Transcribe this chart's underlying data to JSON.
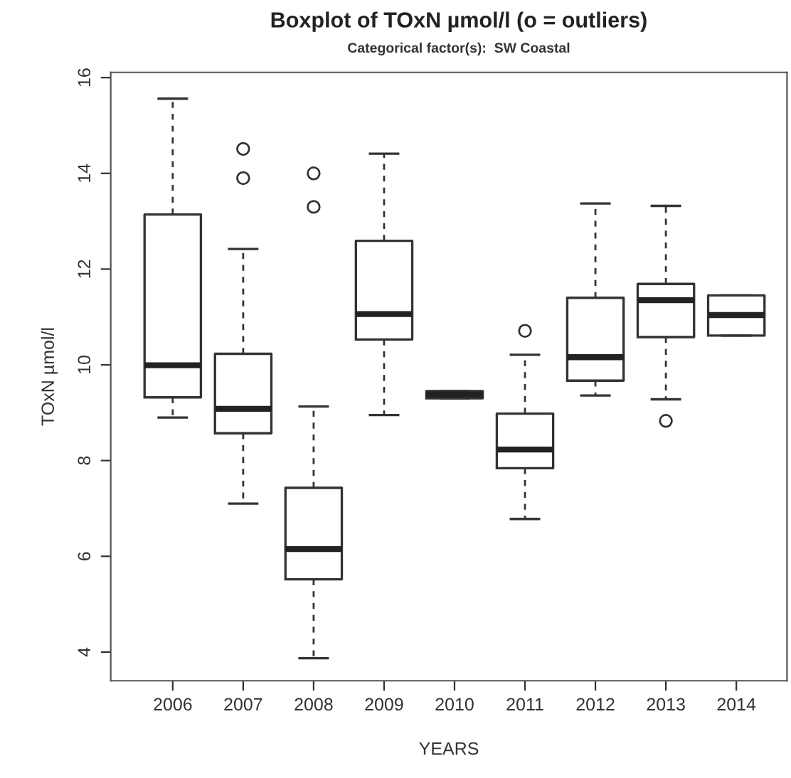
{
  "chart_data": {
    "type": "box",
    "title": "Boxplot of TOxN µmol/l (o = outliers)",
    "subtitle": "Categorical factor(s):  SW Coastal",
    "xlabel": "YEARS",
    "ylabel": "TOxN µmol/l",
    "categories": [
      "2006",
      "2007",
      "2008",
      "2009",
      "2010",
      "2011",
      "2012",
      "2013",
      "2014"
    ],
    "boxes": [
      {
        "low": 8.9,
        "q1": 9.32,
        "median": 9.99,
        "q3": 13.14,
        "high": 15.56
      },
      {
        "low": 7.1,
        "q1": 8.57,
        "median": 9.08,
        "q3": 10.23,
        "high": 12.42,
        "outliers": [
          14.51,
          13.9
        ]
      },
      {
        "low": 3.87,
        "q1": 5.52,
        "median": 6.15,
        "q3": 7.43,
        "high": 9.13,
        "outliers": [
          14.0,
          13.3
        ]
      },
      {
        "low": 8.95,
        "q1": 10.53,
        "median": 11.06,
        "q3": 12.59,
        "high": 14.41
      },
      {
        "low": 9.3,
        "q1": 9.3,
        "median": 9.38,
        "q3": 9.45,
        "high": 9.45
      },
      {
        "low": 6.78,
        "q1": 7.84,
        "median": 8.23,
        "q3": 8.98,
        "high": 10.21,
        "outliers": [
          10.71
        ]
      },
      {
        "low": 9.36,
        "q1": 9.67,
        "median": 10.16,
        "q3": 11.4,
        "high": 13.37
      },
      {
        "low": 9.28,
        "q1": 10.58,
        "median": 11.35,
        "q3": 11.69,
        "high": 13.32,
        "outliers": [
          8.83
        ]
      },
      {
        "low": 10.61,
        "q1": 10.61,
        "median": 11.04,
        "q3": 11.45,
        "high": 11.45
      }
    ],
    "ylim": [
      3.4,
      16.11
    ],
    "yticks": [
      4,
      6,
      8,
      10,
      12,
      14,
      16
    ],
    "marker": "circle"
  }
}
